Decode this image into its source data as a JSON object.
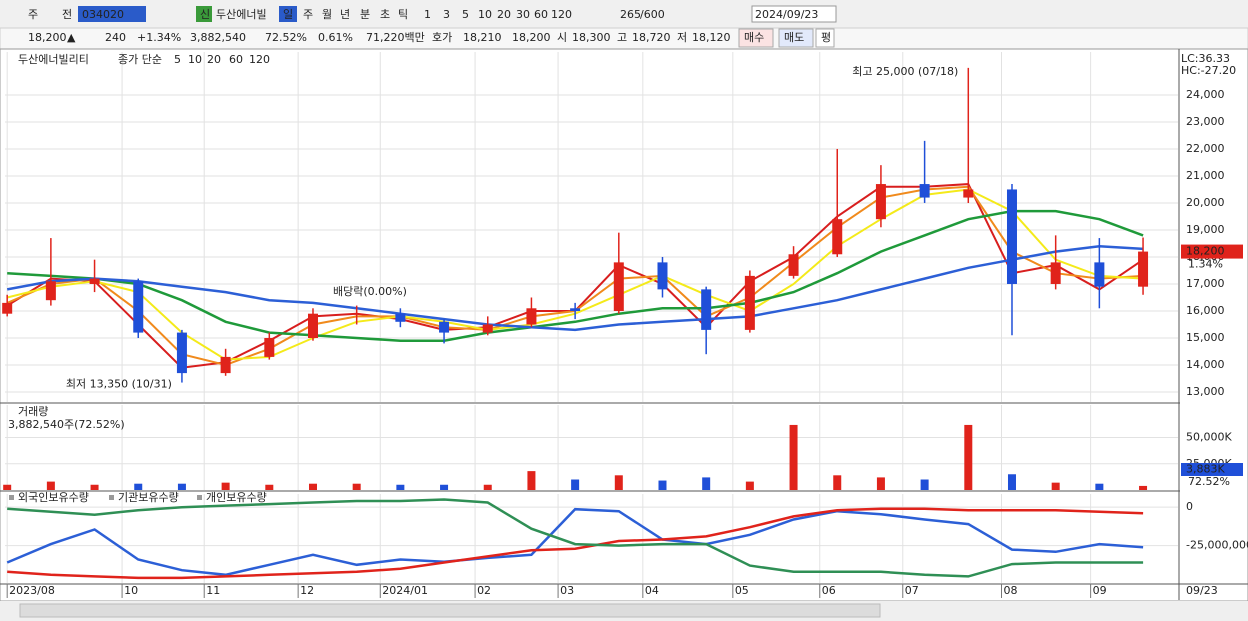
{
  "toolbar": {
    "items": [
      "주",
      "전",
      "034020",
      "신",
      "두산에너빌",
      "일",
      "주",
      "월",
      "년",
      "분",
      "초",
      "틱",
      "1",
      "3",
      "5",
      "10",
      "20",
      "30",
      "60",
      "120",
      "265",
      "/600",
      "2024/09/23"
    ]
  },
  "quote_bar": {
    "items": [
      "18,200",
      "▲",
      "240",
      "+1.34%",
      "3,882,540",
      "72.52%",
      "0.61%",
      "71,220백만",
      "호가",
      "18,210",
      "18,200",
      "시",
      "18,300",
      "고",
      "18,720",
      "저",
      "18,120",
      "매수",
      "매도",
      "평"
    ]
  },
  "chart_data": [
    {
      "type": "candlestick",
      "title": "두산에너빌리티",
      "indicator": "종가 단순",
      "up_color": "#e0231b",
      "down_color": "#1f4fd8",
      "x": [
        0,
        1,
        2,
        3,
        4,
        5,
        6,
        7,
        8,
        9,
        10,
        11,
        12,
        13,
        14,
        15,
        16,
        17,
        18,
        19,
        20,
        21,
        22,
        23,
        24,
        25,
        26
      ],
      "open": [
        15900,
        16400,
        17000,
        17100,
        15200,
        13700,
        14300,
        15000,
        15900,
        15900,
        15600,
        15200,
        15500,
        16100,
        16000,
        17800,
        16800,
        15300,
        17300,
        18100,
        19400,
        20700,
        20200,
        20500,
        17000,
        17800,
        16900
      ],
      "high": [
        16600,
        18700,
        17900,
        17200,
        15300,
        14600,
        15200,
        16100,
        16200,
        16100,
        15700,
        15800,
        16500,
        16300,
        18900,
        18000,
        16900,
        17500,
        18400,
        22000,
        21400,
        22300,
        25000,
        20700,
        18800,
        18700,
        18720
      ],
      "low": [
        15800,
        16200,
        16700,
        15000,
        13350,
        13600,
        14200,
        14900,
        15500,
        15400,
        14800,
        15100,
        15400,
        15700,
        15900,
        16500,
        14400,
        15200,
        17200,
        18000,
        19100,
        20000,
        20000,
        15100,
        16800,
        16100,
        16600
      ],
      "close": [
        16300,
        17100,
        17200,
        15200,
        13700,
        14300,
        15000,
        15900,
        15900,
        15600,
        15200,
        15500,
        16100,
        16000,
        17800,
        16800,
        15300,
        17300,
        18100,
        19400,
        20700,
        20200,
        20500,
        17000,
        17800,
        16900,
        18200
      ],
      "series": [
        {
          "name": "5",
          "color": "#d81e1e",
          "values": [
            16200,
            17200,
            17100,
            15500,
            13900,
            14100,
            14900,
            15800,
            15900,
            15700,
            15300,
            15400,
            16000,
            16000,
            17700,
            17000,
            15400,
            17100,
            18000,
            19500,
            20600,
            20600,
            20700,
            17400,
            17700,
            16800,
            17900
          ]
        },
        {
          "name": "10",
          "color": "#f08a1c",
          "values": [
            16300,
            17000,
            17200,
            16000,
            14400,
            14000,
            14600,
            15500,
            15800,
            15800,
            15400,
            15300,
            15800,
            16000,
            17200,
            17300,
            15800,
            16500,
            17800,
            19100,
            20200,
            20500,
            20600,
            18200,
            17400,
            17200,
            17300
          ]
        },
        {
          "name": "20",
          "color": "#f4ea1a",
          "values": [
            16500,
            16900,
            17100,
            16700,
            15200,
            14200,
            14300,
            15000,
            15600,
            15800,
            15600,
            15300,
            15500,
            15900,
            16600,
            17300,
            16600,
            16000,
            17000,
            18400,
            19400,
            20300,
            20500,
            19700,
            17900,
            17300,
            17200
          ]
        },
        {
          "name": "60",
          "color": "#1f9a3a",
          "values": [
            17400,
            17300,
            17200,
            17000,
            16400,
            15600,
            15200,
            15100,
            15000,
            14900,
            14900,
            15200,
            15400,
            15600,
            15900,
            16100,
            16100,
            16300,
            16700,
            17400,
            18200,
            18800,
            19400,
            19700,
            19700,
            19400,
            18800
          ]
        },
        {
          "name": "120",
          "color": "#2c5fd6",
          "values": [
            16800,
            17100,
            17200,
            17100,
            16900,
            16700,
            16400,
            16300,
            16100,
            15900,
            15700,
            15500,
            15400,
            15300,
            15500,
            15600,
            15700,
            15800,
            16100,
            16400,
            16800,
            17200,
            17600,
            17900,
            18200,
            18400,
            18300
          ]
        }
      ],
      "xlim": [
        -0.05,
        26.8
      ],
      "ylim": [
        12630,
        25590
      ],
      "yticks": [
        {
          "value": 13000,
          "label": "13,000"
        },
        {
          "value": 14000,
          "label": "14,000"
        },
        {
          "value": 15000,
          "label": "15,000"
        },
        {
          "value": 16000,
          "label": "16,000"
        },
        {
          "value": 17000,
          "label": "17,000"
        },
        {
          "value": 18000,
          "label": "18,000"
        },
        {
          "value": 19000,
          "label": "19,000"
        },
        {
          "value": 20000,
          "label": "20,000"
        },
        {
          "value": 21000,
          "label": "21,000"
        },
        {
          "value": 22000,
          "label": "22,000"
        },
        {
          "value": 23000,
          "label": "23,000"
        },
        {
          "value": 24000,
          "label": "24,000"
        }
      ],
      "grid": true,
      "high_label": "최고 25,000 (07/18)",
      "low_label": "최저 13,350 (10/31)",
      "ex_dividend_label": "배당락(0.00%)",
      "lc_label": "LC:36.33",
      "hc_label": "HC:-27.20",
      "last_price_label": "18,200",
      "last_change_label": "1.34%"
    },
    {
      "type": "bar",
      "title": "거래량",
      "subtitle": "3,882,540주(72.52%)",
      "x": [
        0,
        1,
        2,
        3,
        4,
        5,
        6,
        7,
        8,
        9,
        10,
        11,
        12,
        13,
        14,
        15,
        16,
        17,
        18,
        19,
        20,
        21,
        22,
        23,
        24,
        25,
        26
      ],
      "values": [
        5000,
        8000,
        5000,
        6000,
        6000,
        7000,
        5000,
        6000,
        6000,
        5000,
        5000,
        5000,
        18000,
        10000,
        14000,
        9000,
        12000,
        8000,
        62000,
        14000,
        12000,
        10000,
        62000,
        15000,
        7000,
        6000,
        3883
      ],
      "xlim": [
        -0.05,
        26.8
      ],
      "ylim": [
        0,
        81000
      ],
      "yticks": [
        {
          "value": 25000,
          "label": "25,000K"
        },
        {
          "value": 50000,
          "label": "50,000K"
        }
      ],
      "last_value_label": "3,883K",
      "last_ratio_label": "72.52%"
    },
    {
      "type": "line",
      "series": [
        {
          "name": "외국인보유수량",
          "color": "#2c5fd6",
          "values": [
            -36000000,
            -24000000,
            -14500000,
            -34000000,
            -41000000,
            -44000000,
            -37500000,
            -31000000,
            -37500000,
            -34000000,
            -35500000,
            -33000000,
            -31000000,
            -1300000,
            -2600000,
            -21000000,
            -24000000,
            -18000000,
            -8000000,
            -2600000,
            -4600000,
            -8000000,
            -11000000,
            -27600000,
            -29000000,
            -24000000,
            -26000000
          ]
        },
        {
          "name": "기관보유수량",
          "color": "#e0231b",
          "values": [
            -42000000,
            -44000000,
            -45000000,
            -46000000,
            -46000000,
            -45000000,
            -44000000,
            -43000000,
            -42000000,
            -40000000,
            -36000000,
            -32000000,
            -28000000,
            -27000000,
            -22000000,
            -21000000,
            -19000000,
            -13000000,
            -6000000,
            -2000000,
            -1000000,
            -1000000,
            -2000000,
            -2000000,
            -2000000,
            -3000000,
            -4000000
          ]
        },
        {
          "name": "개인보유수량",
          "color": "#2f8f55",
          "values": [
            -1000000,
            -3000000,
            -5000000,
            -2000000,
            0,
            1000000,
            2000000,
            3000000,
            4000000,
            4000000,
            5000000,
            3000000,
            -14000000,
            -24000000,
            -25000000,
            -24000000,
            -24000000,
            -38000000,
            -42000000,
            -42000000,
            -42000000,
            -44000000,
            -45000000,
            -37000000,
            -36000000,
            -36000000,
            -36000000
          ]
        }
      ],
      "x": [
        0,
        1,
        2,
        3,
        4,
        5,
        6,
        7,
        8,
        9,
        10,
        11,
        12,
        13,
        14,
        15,
        16,
        17,
        18,
        19,
        20,
        21,
        22,
        23,
        24,
        25,
        26
      ],
      "xlim": [
        -0.05,
        26.8
      ],
      "ylim": [
        -49300000,
        8550000
      ],
      "yticks": [
        {
          "value": -25000000,
          "label": "-25,000,000"
        },
        0
      ],
      "xticks": [
        {
          "value": 0,
          "label": "2023/08"
        },
        {
          "value": 2.63,
          "label": "10"
        },
        {
          "value": 4.51,
          "label": "11"
        },
        {
          "value": 6.66,
          "label": "12"
        },
        {
          "value": 8.54,
          "label": "2024/01"
        },
        {
          "value": 10.71,
          "label": "02"
        },
        {
          "value": 12.61,
          "label": "03"
        },
        {
          "value": 14.55,
          "label": "04"
        },
        {
          "value": 16.61,
          "label": "05"
        },
        {
          "value": 18.6,
          "label": "06"
        },
        {
          "value": 20.5,
          "label": "07"
        },
        {
          "value": 22.76,
          "label": "08"
        },
        {
          "value": 24.8,
          "label": "09"
        }
      ],
      "x_end_label": "09/23"
    }
  ]
}
